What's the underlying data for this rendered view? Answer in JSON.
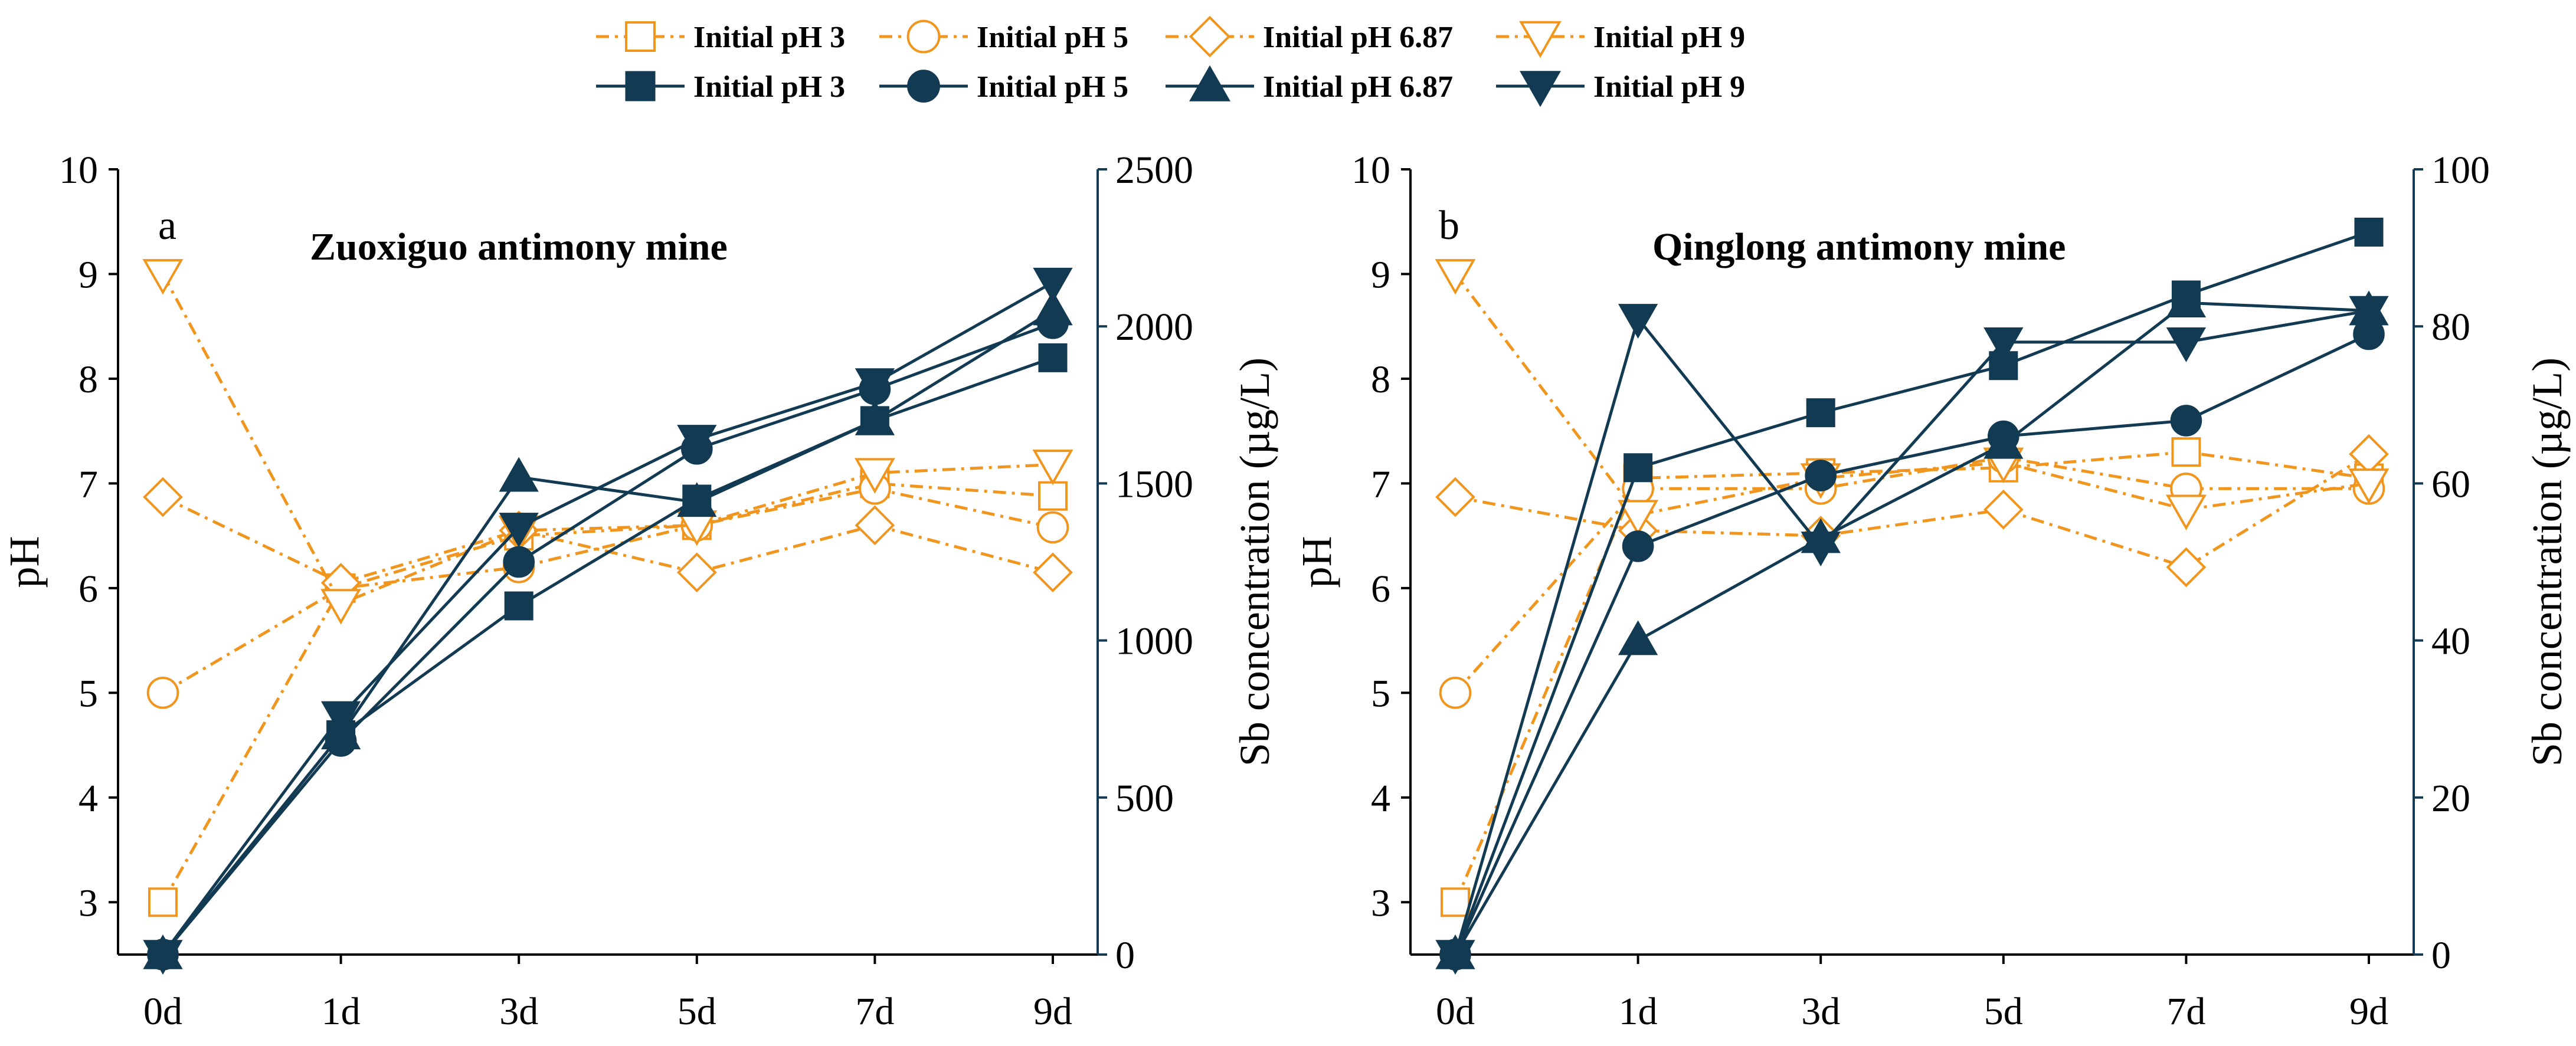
{
  "colors": {
    "orange": "#F0961E",
    "navy": "#123A52",
    "axis": "#000000"
  },
  "legend": {
    "ph_row": [
      "Initial pH 3",
      "Initial pH 5",
      "Initial pH 6.87",
      "Initial pH 9"
    ],
    "sb_row": [
      "Initial pH 3",
      "Initial pH 5",
      "Initial pH 6.87",
      "Initial pH 9"
    ]
  },
  "chart_data": [
    {
      "type": "line",
      "panel": "a",
      "title": "Zuoxiguo antimony mine",
      "categories": [
        "0d",
        "1d",
        "3d",
        "5d",
        "7d",
        "9d"
      ],
      "y_left": {
        "label": "pH",
        "lim": [
          2.5,
          10
        ],
        "ticks": [
          "3",
          "4",
          "5",
          "6",
          "7",
          "8",
          "9",
          "10"
        ]
      },
      "y_right": {
        "label": "Sb concentration (µg/L)",
        "lim": [
          0,
          2500
        ],
        "ticks": [
          "0",
          "500",
          "1000",
          "1500",
          "2000",
          "2500"
        ]
      },
      "series": [
        {
          "name": "Initial pH 3",
          "axis": "left",
          "marker": "square",
          "filled": false,
          "values": [
            3.0,
            6.0,
            6.5,
            6.6,
            7.0,
            6.88
          ]
        },
        {
          "name": "Initial pH 5",
          "axis": "left",
          "marker": "circle",
          "filled": false,
          "values": [
            5.0,
            6.0,
            6.2,
            6.6,
            6.95,
            6.58
          ]
        },
        {
          "name": "Initial pH 6.87",
          "axis": "left",
          "marker": "diamond",
          "filled": false,
          "values": [
            6.87,
            6.05,
            6.55,
            6.15,
            6.6,
            6.15
          ]
        },
        {
          "name": "Initial pH 9",
          "axis": "left",
          "marker": "triangle-down",
          "filled": false,
          "values": [
            9.0,
            5.85,
            6.55,
            6.6,
            7.1,
            7.18
          ]
        },
        {
          "name": "Initial pH 3",
          "axis": "right",
          "marker": "square",
          "filled": true,
          "values": [
            0,
            700,
            1110,
            1450,
            1700,
            1900
          ]
        },
        {
          "name": "Initial pH 5",
          "axis": "right",
          "marker": "circle",
          "filled": true,
          "values": [
            0,
            680,
            1250,
            1610,
            1800,
            2010
          ]
        },
        {
          "name": "Initial pH 6.87",
          "axis": "right",
          "marker": "triangle-up",
          "filled": true,
          "values": [
            0,
            700,
            1520,
            1440,
            1700,
            2050
          ]
        },
        {
          "name": "Initial pH 9",
          "axis": "right",
          "marker": "triangle-down",
          "filled": true,
          "values": [
            0,
            760,
            1360,
            1640,
            1820,
            2140
          ]
        }
      ]
    },
    {
      "type": "line",
      "panel": "b",
      "title": "Qinglong antimony mine",
      "categories": [
        "0d",
        "1d",
        "3d",
        "5d",
        "7d",
        "9d"
      ],
      "y_left": {
        "label": "pH",
        "lim": [
          2.5,
          10
        ],
        "ticks": [
          "3",
          "4",
          "5",
          "6",
          "7",
          "8",
          "9",
          "10"
        ]
      },
      "y_right": {
        "label": "Sb concentration (µg/L)",
        "lim": [
          0,
          100
        ],
        "ticks": [
          "0",
          "20",
          "40",
          "60",
          "80",
          "100"
        ]
      },
      "series": [
        {
          "name": "Initial pH 3",
          "axis": "left",
          "marker": "square",
          "filled": false,
          "values": [
            3.0,
            7.05,
            7.1,
            7.15,
            7.3,
            7.05
          ]
        },
        {
          "name": "Initial pH 5",
          "axis": "left",
          "marker": "circle",
          "filled": false,
          "values": [
            5.0,
            6.95,
            6.95,
            7.25,
            6.95,
            6.95
          ]
        },
        {
          "name": "Initial pH 6.87",
          "axis": "left",
          "marker": "diamond",
          "filled": false,
          "values": [
            6.87,
            6.55,
            6.5,
            6.75,
            6.2,
            7.28
          ]
        },
        {
          "name": "Initial pH 9",
          "axis": "left",
          "marker": "triangle-down",
          "filled": false,
          "values": [
            9.0,
            6.7,
            7.05,
            7.2,
            6.75,
            7.0
          ]
        },
        {
          "name": "Initial pH 3",
          "axis": "right",
          "marker": "square",
          "filled": true,
          "values": [
            0,
            62,
            69,
            75,
            84,
            92
          ]
        },
        {
          "name": "Initial pH 5",
          "axis": "right",
          "marker": "circle",
          "filled": true,
          "values": [
            0,
            52,
            61,
            66,
            68,
            79
          ]
        },
        {
          "name": "Initial pH 6.87",
          "axis": "right",
          "marker": "triangle-up",
          "filled": true,
          "values": [
            0,
            40,
            53,
            65,
            83,
            82
          ]
        },
        {
          "name": "Initial pH 9",
          "axis": "right",
          "marker": "triangle-down",
          "filled": true,
          "values": [
            0,
            81,
            52,
            78,
            78,
            82
          ]
        }
      ]
    }
  ]
}
